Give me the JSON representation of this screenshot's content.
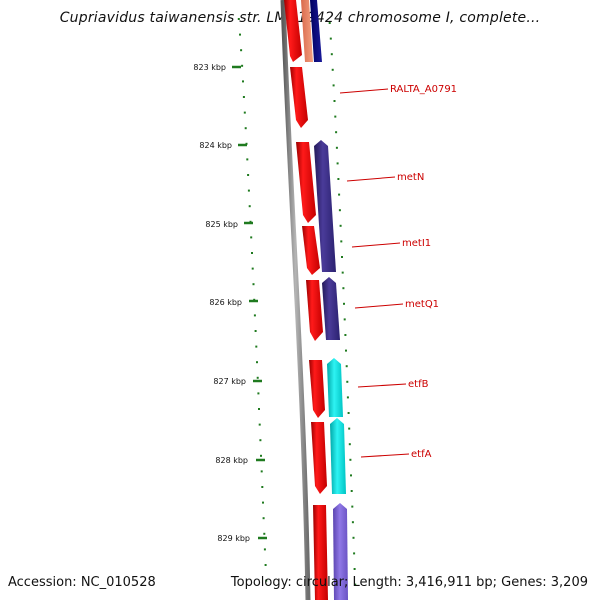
{
  "header": {
    "title": "Cupriavidus taiwanensis str. LMG19424 chromosome I, complete..."
  },
  "footer": {
    "accession": "Accession: NC_010528",
    "summary": "Topology: circular; Length: 3,416,911 bp; Genes: 3,209"
  },
  "colors": {
    "backbone": "#8a8a8a",
    "tick": "#1f7a1f",
    "forward_gene": "#ee1111",
    "reverse_gene_purple": "#3d2f88",
    "reverse_gene_cyan": "#12dede",
    "reverse_gene_lavender": "#7a62cf",
    "label": "#cc0000"
  },
  "scale": {
    "tick_labels": [
      "823 kbp",
      "824 kbp",
      "825 kbp",
      "826 kbp",
      "827 kbp",
      "828 kbp",
      "829 kbp"
    ]
  },
  "genes": [
    {
      "name": "RALTA_A0791"
    },
    {
      "name": "metN"
    },
    {
      "name": "metI1"
    },
    {
      "name": "metQ1"
    },
    {
      "name": "etfB"
    },
    {
      "name": "etfA"
    }
  ]
}
